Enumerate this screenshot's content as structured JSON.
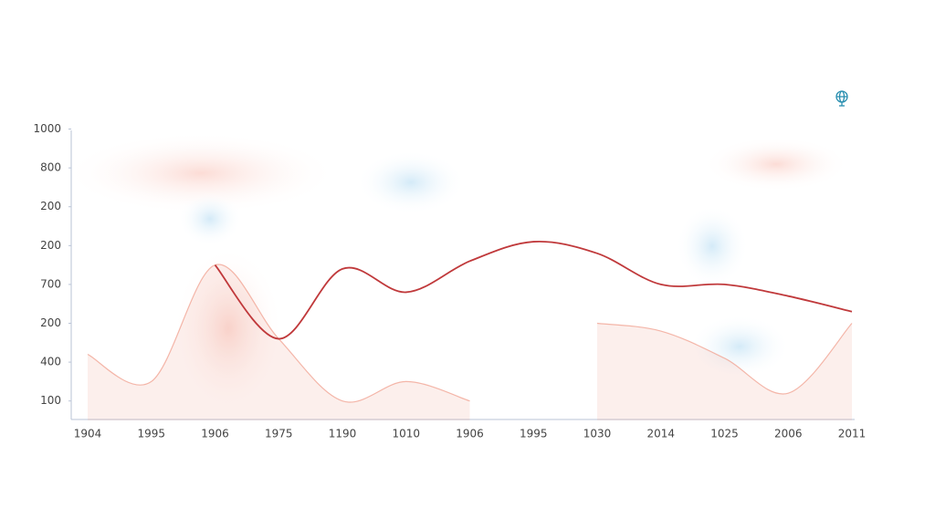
{
  "chart_data": {
    "type": "line",
    "categories": [
      "1904",
      "1995",
      "1906",
      "1975",
      "1190",
      "1010",
      "1906",
      "1995",
      "1030",
      "2014",
      "1025",
      "2006",
      "2011"
    ],
    "series": [
      {
        "color": "#c0393b",
        "values": [
          null,
          null,
          3.5,
          1.6,
          3.4,
          2.8,
          3.6,
          4.1,
          3.8,
          3.0,
          3.0,
          2.7,
          2.3
        ]
      },
      {
        "color": "#f1a595",
        "values": [
          1.2,
          0.5,
          3.5,
          1.6,
          0.0,
          0.5,
          0.0,
          null,
          2.0,
          1.8,
          1.1,
          0.2,
          2.0
        ]
      }
    ],
    "ylim": [
      -0.5,
      7.2
    ],
    "yticks": [
      {
        "value": 0,
        "label": "100"
      },
      {
        "value": 1,
        "label": "400"
      },
      {
        "value": 2,
        "label": "200"
      },
      {
        "value": 3,
        "label": "700"
      },
      {
        "value": 4,
        "label": "200"
      },
      {
        "value": 5,
        "label": "200"
      },
      {
        "value": 6,
        "label": "800"
      },
      {
        "value": 7,
        "label": "1000"
      }
    ]
  }
}
